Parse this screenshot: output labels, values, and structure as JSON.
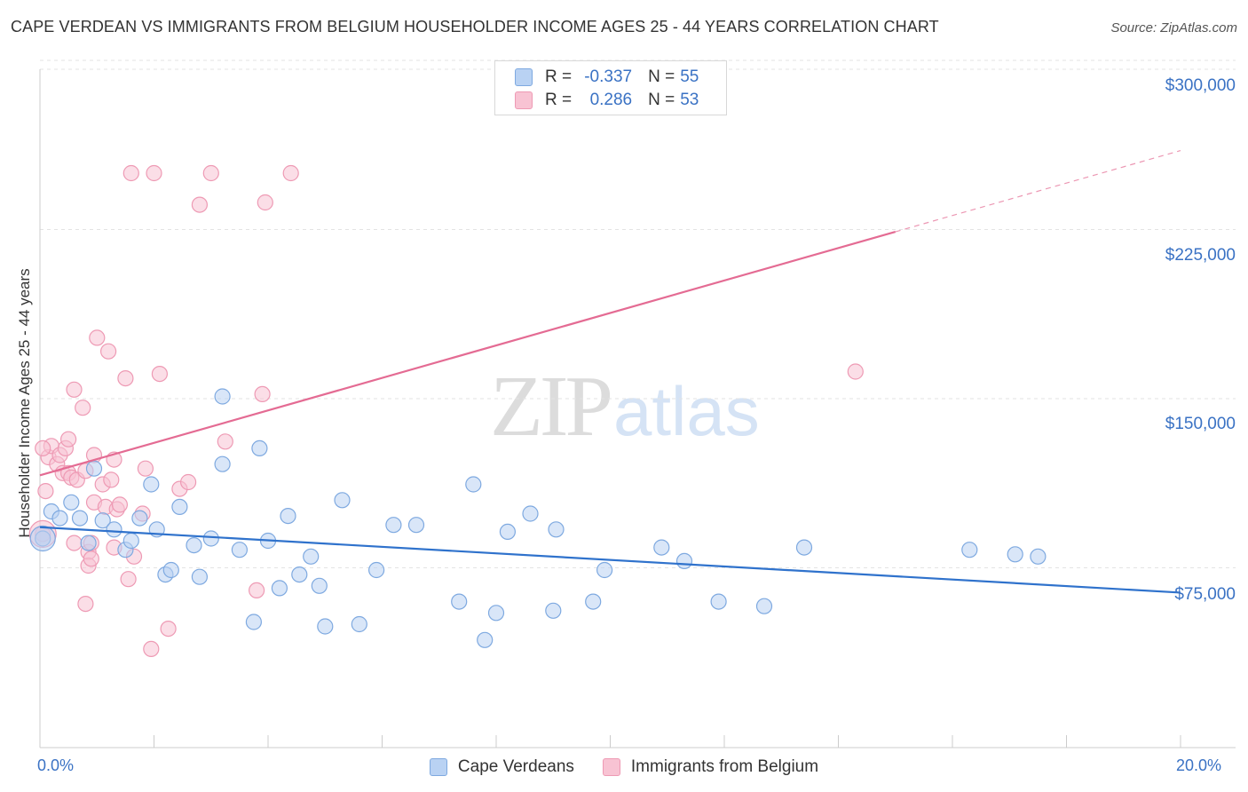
{
  "title": "CAPE VERDEAN VS IMMIGRANTS FROM BELGIUM HOUSEHOLDER INCOME AGES 25 - 44 YEARS CORRELATION CHART",
  "source": "Source: ZipAtlas.com",
  "watermark": {
    "zip": "ZIP",
    "atlas": "atlas"
  },
  "colors": {
    "blue_fill": "#b9d2f3",
    "blue_stroke": "#7ea9e0",
    "blue_line": "#2f72cc",
    "pink_fill": "#f8c3d3",
    "pink_stroke": "#ee9ab4",
    "pink_line": "#e46b93",
    "axis_text": "#3a72c4",
    "grid": "#e3e3e3"
  },
  "legend": {
    "rows": [
      {
        "r_label": "R =",
        "r_value": "-0.337",
        "n_label": "N =",
        "n_value": "55",
        "color": "blue"
      },
      {
        "r_label": "R =",
        "r_value": "0.286",
        "n_label": "N =",
        "n_value": "53",
        "color": "pink"
      }
    ]
  },
  "bottom_legend": {
    "items": [
      {
        "label": "Cape Verdeans",
        "color": "blue"
      },
      {
        "label": "Immigrants from Belgium",
        "color": "pink"
      }
    ]
  },
  "chart_data": {
    "type": "scatter",
    "title": "CAPE VERDEAN VS IMMIGRANTS FROM BELGIUM HOUSEHOLDER INCOME AGES 25 - 44 YEARS CORRELATION CHART",
    "xlabel": "",
    "ylabel": "Householder Income Ages 25 - 44 years",
    "xlim": [
      0,
      20
    ],
    "ylim": [
      0,
      310000
    ],
    "x_tick_labels": [
      "0.0%",
      "20.0%"
    ],
    "y_ticks": [
      75000,
      150000,
      225000,
      300000
    ],
    "y_tick_labels": [
      "$75,000",
      "$150,000",
      "$225,000",
      "$300,000"
    ],
    "grid": true,
    "legend_position": "top-center",
    "series": [
      {
        "name": "Cape Verdeans",
        "color": "blue",
        "points": [
          [
            0.05,
            88000
          ],
          [
            0.2,
            100000
          ],
          [
            0.35,
            97000
          ],
          [
            0.55,
            104000
          ],
          [
            0.7,
            97000
          ],
          [
            0.85,
            86000
          ],
          [
            0.95,
            119000
          ],
          [
            1.1,
            96000
          ],
          [
            1.3,
            92000
          ],
          [
            1.5,
            83000
          ],
          [
            1.6,
            87000
          ],
          [
            1.75,
            97000
          ],
          [
            1.95,
            112000
          ],
          [
            2.05,
            92000
          ],
          [
            2.2,
            72000
          ],
          [
            2.3,
            74000
          ],
          [
            2.45,
            102000
          ],
          [
            2.7,
            85000
          ],
          [
            2.8,
            71000
          ],
          [
            3.0,
            88000
          ],
          [
            3.2,
            151000
          ],
          [
            3.2,
            121000
          ],
          [
            3.5,
            83000
          ],
          [
            3.75,
            51000
          ],
          [
            3.85,
            128000
          ],
          [
            4.0,
            87000
          ],
          [
            4.2,
            66000
          ],
          [
            4.35,
            98000
          ],
          [
            4.55,
            72000
          ],
          [
            4.75,
            80000
          ],
          [
            4.9,
            67000
          ],
          [
            5.0,
            49000
          ],
          [
            5.3,
            105000
          ],
          [
            5.6,
            50000
          ],
          [
            5.9,
            74000
          ],
          [
            6.2,
            94000
          ],
          [
            6.6,
            94000
          ],
          [
            7.35,
            60000
          ],
          [
            7.6,
            112000
          ],
          [
            7.8,
            43000
          ],
          [
            8.0,
            55000
          ],
          [
            8.2,
            91000
          ],
          [
            8.6,
            99000
          ],
          [
            9.0,
            56000
          ],
          [
            9.05,
            92000
          ],
          [
            9.7,
            60000
          ],
          [
            9.9,
            74000
          ],
          [
            10.9,
            84000
          ],
          [
            11.3,
            78000
          ],
          [
            11.9,
            60000
          ],
          [
            12.7,
            58000
          ],
          [
            13.4,
            84000
          ],
          [
            16.3,
            83000
          ],
          [
            17.1,
            81000
          ],
          [
            17.5,
            80000
          ]
        ],
        "trend": {
          "x": [
            0,
            20
          ],
          "y": [
            93000,
            64000
          ]
        }
      },
      {
        "name": "Immigrants from Belgium",
        "color": "pink",
        "points": [
          [
            0.05,
            90000
          ],
          [
            0.1,
            109000
          ],
          [
            0.15,
            124000
          ],
          [
            0.2,
            129000
          ],
          [
            0.3,
            121000
          ],
          [
            0.35,
            125000
          ],
          [
            0.4,
            117000
          ],
          [
            0.45,
            128000
          ],
          [
            0.5,
            132000
          ],
          [
            0.5,
            117000
          ],
          [
            0.55,
            115000
          ],
          [
            0.6,
            86000
          ],
          [
            0.6,
            154000
          ],
          [
            0.65,
            114000
          ],
          [
            0.75,
            146000
          ],
          [
            0.8,
            59000
          ],
          [
            0.8,
            118000
          ],
          [
            0.85,
            82000
          ],
          [
            0.85,
            76000
          ],
          [
            0.9,
            79000
          ],
          [
            0.9,
            86000
          ],
          [
            0.95,
            104000
          ],
          [
            0.95,
            125000
          ],
          [
            1.0,
            177000
          ],
          [
            1.1,
            112000
          ],
          [
            1.15,
            102000
          ],
          [
            1.2,
            171000
          ],
          [
            1.25,
            114000
          ],
          [
            1.3,
            123000
          ],
          [
            1.3,
            84000
          ],
          [
            1.35,
            101000
          ],
          [
            1.4,
            103000
          ],
          [
            1.5,
            159000
          ],
          [
            1.55,
            70000
          ],
          [
            1.6,
            250000
          ],
          [
            1.65,
            80000
          ],
          [
            1.8,
            99000
          ],
          [
            1.85,
            119000
          ],
          [
            1.95,
            39000
          ],
          [
            2.0,
            250000
          ],
          [
            2.1,
            161000
          ],
          [
            2.25,
            48000
          ],
          [
            2.45,
            110000
          ],
          [
            2.6,
            113000
          ],
          [
            2.8,
            236000
          ],
          [
            3.0,
            250000
          ],
          [
            3.25,
            131000
          ],
          [
            3.8,
            65000
          ],
          [
            3.9,
            152000
          ],
          [
            3.95,
            237000
          ],
          [
            4.4,
            250000
          ],
          [
            14.3,
            162000
          ],
          [
            0.05,
            128000
          ]
        ],
        "trend": {
          "x": [
            0,
            15
          ],
          "y": [
            116000,
            224000
          ]
        },
        "trend_extension": {
          "x": [
            15,
            20
          ],
          "y": [
            224000,
            260000
          ]
        }
      }
    ]
  },
  "x_axis": {
    "left_label": "0.0%",
    "right_label": "20.0%"
  }
}
